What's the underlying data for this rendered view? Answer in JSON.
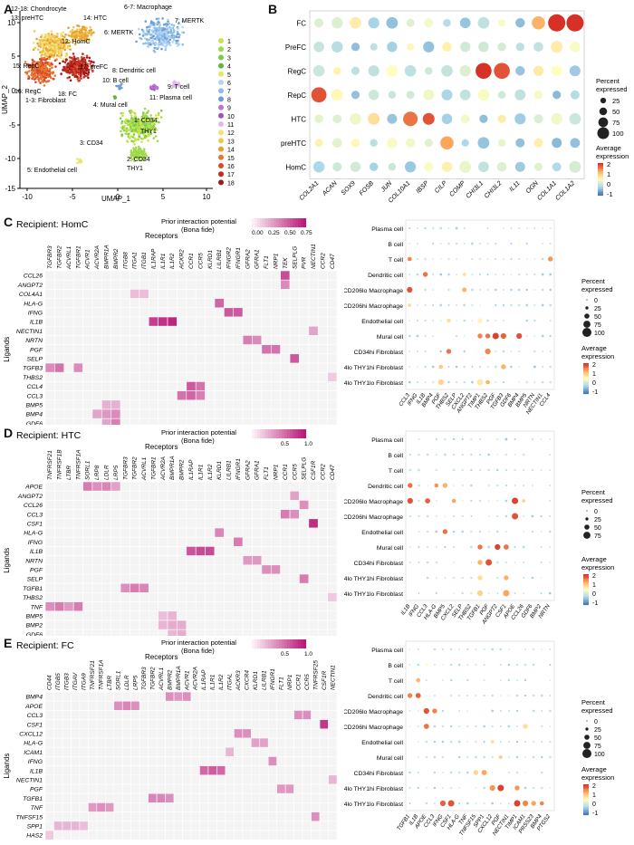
{
  "panels": {
    "A": {
      "label": "A",
      "xlabel": "UMAP_1",
      "ylabel": "UMAP_2",
      "xticks": [
        "-10",
        "-5",
        "0",
        "5",
        "10"
      ],
      "yticks": [
        "10",
        "5",
        "0",
        "-5",
        "-10",
        "-15"
      ],
      "cluster_labels": [
        {
          "text": "12-18: Chondrocyte"
        },
        {
          "text": "13: preHTC"
        },
        {
          "text": "14: HTC"
        },
        {
          "text": "12: HomC"
        },
        {
          "text": "15: RepC"
        },
        {
          "text": "17: preFC"
        },
        {
          "text": "16: RegC"
        },
        {
          "text": "18: FC"
        },
        {
          "text": "1-3: Fibroblast"
        },
        {
          "text": "6-7: Macrophage"
        },
        {
          "text": "7: MERTK"
        },
        {
          "text": "6: MERTK"
        },
        {
          "text": "8: Dendritic cell"
        },
        {
          "text": "10: B cell"
        },
        {
          "text": "9: T cell"
        },
        {
          "text": "11: Plasma cell"
        },
        {
          "text": "4: Mural cell"
        },
        {
          "text": "1: CD34"
        },
        {
          "text": "THY1"
        },
        {
          "text": "3: CD34"
        },
        {
          "text": "2: CD34"
        },
        {
          "text": "THY1"
        },
        {
          "text": "5: Endothelial cell"
        }
      ],
      "legend": [
        "1",
        "2",
        "3",
        "4",
        "5",
        "6",
        "7",
        "8",
        "9",
        "10",
        "11",
        "12",
        "13",
        "14",
        "15",
        "16",
        "17",
        "18"
      ],
      "colors": [
        "#c8e64b",
        "#9fd94a",
        "#7dc94a",
        "#5fb83e",
        "#e3e86a",
        "#b5d4f0",
        "#8fbde8",
        "#6a9fd8",
        "#c070d8",
        "#a050c8",
        "#e0b8f0",
        "#f5e070",
        "#f0c850",
        "#e8a030",
        "#e87830",
        "#d84a2a",
        "#c02a20",
        "#a01818"
      ]
    },
    "B": {
      "label": "B",
      "rows": [
        "FC",
        "PreFC",
        "RegC",
        "RepC",
        "HTC",
        "preHTC",
        "HomC"
      ],
      "cols": [
        "COL2A1",
        "ACAN",
        "SOX9",
        "FOSB",
        "JUN",
        "COL10A1",
        "IBSP",
        "CILP",
        "COMP",
        "CHI3L1",
        "CHI3L2",
        "IL11",
        "OGN",
        "COL1A1",
        "COL1A2"
      ],
      "legend_title_1": "Percent",
      "legend_title_2": "expressed",
      "size_legend": [
        "25",
        "50",
        "75",
        "100"
      ],
      "color_title_1": "Average",
      "color_title_2": "expression",
      "color_ticks": [
        "2",
        "1",
        "0",
        "-1"
      ]
    },
    "C": {
      "label": "C",
      "title": "Recipient: HomC",
      "cbar_title_1": "Prior interaction potential",
      "cbar_title_2": "(Bona fide)",
      "cbar_ticks": [
        "0.00",
        "0.25",
        "0.50",
        "0.75"
      ],
      "xaxis_title": "Receptors",
      "yaxis_title": "Ligands",
      "receptors": [
        "TGFBR3",
        "TGFBR2",
        "ACVRL1",
        "TGFBR1",
        "ACVR1",
        "ACVR2A",
        "BMPR1A",
        "BMPR2",
        "ITGB8",
        "ITGA1",
        "ITGB1",
        "IL1RAP",
        "IL1R1",
        "IL1R2",
        "ACKR2",
        "CCR1",
        "CCR5",
        "KLRD1",
        "LILRB1",
        "IFNGR2",
        "IFNGR1",
        "GFRA2",
        "GFRA1",
        "FLT1",
        "NRP1",
        "TEK",
        "SELPLG",
        "PVR",
        "NECTIN1",
        "CCR2",
        "CD47"
      ],
      "ligands": [
        "CCL26",
        "ANGPT2",
        "COL4A1",
        "HLA-G",
        "IFNG",
        "IL1B",
        "NECTIN1",
        "NRTN",
        "PGF",
        "SELP",
        "TGFB3",
        "THBS2",
        "CCL4",
        "CCL3",
        "BMP5",
        "BMP4",
        "GDF6"
      ],
      "dot_rows": [
        "Plasma cell",
        "B cell",
        "T cell",
        "Dendritic cell",
        "MERTKlo CD206lo Macrophage",
        "MERTKhi CD206hi Macrophage",
        "Endothelial cell",
        "Mural cell",
        "CD34hi Fibroblast",
        "CD34lo THY1hi Fibroblast",
        "CD34lo THY1lo Fibroblast"
      ],
      "dot_cols": [
        "CCL3",
        "IFNG",
        "IL1B",
        "BMP4",
        "PGF",
        "THBS2",
        "SELP",
        "CXCL2",
        "ANGPT2",
        "TIMP1",
        "THBS2",
        "PGF",
        "TGFB3",
        "GDF6",
        "BMP4",
        "BMP5",
        "NRTN",
        "NECTIN1",
        "CCL4"
      ]
    },
    "D": {
      "label": "D",
      "title": "Recipient: HTC",
      "cbar_title_1": "Prior interaction potential",
      "cbar_title_2": "(Bona fide)",
      "cbar_ticks": [
        "0.5",
        "1.0"
      ],
      "xaxis_title": "Receptors",
      "yaxis_title": "Ligands",
      "receptors": [
        "TNFRSF21",
        "TNFRSF1B",
        "LTBR",
        "TNFRSF1A",
        "SORL1",
        "LRP8",
        "LDLR",
        "LRP5",
        "TGFBR3",
        "TGFBR2",
        "ACVRL1",
        "TGFBR1",
        "ACVR2A",
        "BMPR1A",
        "BMPR2",
        "IL1RAP",
        "IL1R1",
        "IL1R2",
        "KLRD1",
        "LILRB1",
        "IFNGR1",
        "GFRA2",
        "GFRA1",
        "FLT1",
        "NRP1",
        "CCR1",
        "CCR5",
        "SELPLG",
        "CSF1R",
        "CCR2",
        "CD47"
      ],
      "ligands": [
        "APOE",
        "ANGPT2",
        "CCL26",
        "CCL3",
        "CSF1",
        "HLA-G",
        "IFNG",
        "IL1B",
        "NRTN",
        "PGF",
        "SELP",
        "TGFB1",
        "THBS2",
        "TNF",
        "BMP5",
        "BMP2",
        "GDF6"
      ],
      "dot_rows": [
        "Plasma cell",
        "B cell",
        "T cell",
        "Dendritic cell",
        "MERTKlo CD206lo Macrophage",
        "MERTKhi CD206hi Macrophage",
        "Endothelial cell",
        "Mural cell",
        "CD34hi Fibroblast",
        "CD34lo THY1hi Fibroblast",
        "CD34lo THY1lo Fibroblast"
      ],
      "dot_cols": [
        "IL1B",
        "IFNG",
        "CCL3",
        "HLA-G",
        "BMP5",
        "CXCL2",
        "SELP",
        "THBS2",
        "TGFB1",
        "PGF",
        "ANGPT2",
        "CSF1",
        "APOE",
        "CCL26",
        "GDF6",
        "BMP2",
        "NRTN"
      ],
      "size_legend": [
        "0",
        "25",
        "50",
        "75"
      ]
    },
    "E": {
      "label": "E",
      "title": "Recipient: FC",
      "cbar_title_1": "Prior interaction potential",
      "cbar_title_2": "(Bona fide)",
      "cbar_ticks": [
        "0.5",
        "1.0"
      ],
      "xaxis_title": "Receptors",
      "yaxis_title": "Ligands",
      "receptors": [
        "CD44",
        "ITGB5",
        "ITGB3",
        "ITGAV",
        "ITGA9",
        "TNFRSF21",
        "TNFRSF1A",
        "LTBR",
        "SORL1",
        "LDLR",
        "LRP5",
        "TGFBR3",
        "TGFBR2",
        "ACVRL1",
        "BMPR2",
        "BMPR1A",
        "ACVR1",
        "ACVR2A",
        "IL1RAP",
        "IL1R1",
        "IL1R2",
        "ITGAL",
        "ACKR3",
        "CXCR4",
        "KLRD1",
        "LILRB1",
        "IFNGR1",
        "FLT1",
        "NRP1",
        "CCR1",
        "CCR5",
        "TNFRSF25",
        "CSF1R",
        "NECTIN1"
      ],
      "ligands": [
        "BMP4",
        "APOE",
        "CCL3",
        "CSF1",
        "CXCL12",
        "HLA-G",
        "ICAM1",
        "IFNG",
        "IL1B",
        "NECTIN1",
        "PGF",
        "TGFB1",
        "TNF",
        "TNFSF15",
        "SPP1",
        "HAS2"
      ],
      "dot_rows": [
        "Plasma cell",
        "B cell",
        "T cell",
        "Dendritic cell",
        "MERTKlo CD206lo Macrophage",
        "MERTKhi CD206hi Macrophage",
        "Endothelial cell",
        "Mural cell",
        "CD34hi Fibroblast",
        "CD34lo THY1hi Fibroblast",
        "CD34lo THY1lo Fibroblast"
      ],
      "dot_cols": [
        "TGFB1",
        "IL1B",
        "APOE",
        "CCL3",
        "IFNG",
        "CSF1",
        "HLA-G",
        "TNF",
        "TNFSF15",
        "SPP1",
        "CXCL12",
        "PGF",
        "NECTIN1",
        "TIMP1",
        "ICAM1",
        "PRSS23",
        "BMP4",
        "PTGS2"
      ],
      "size_legend": [
        "0",
        "25",
        "50",
        "75",
        "100"
      ]
    },
    "dot_legend": {
      "percent_1": "Percent",
      "percent_2": "expressed",
      "avg_1": "Average",
      "avg_2": "expression",
      "sizes": [
        "0",
        "25",
        "50",
        "75",
        "100"
      ],
      "ticks": [
        "2",
        "1",
        "0",
        "-1"
      ]
    }
  }
}
